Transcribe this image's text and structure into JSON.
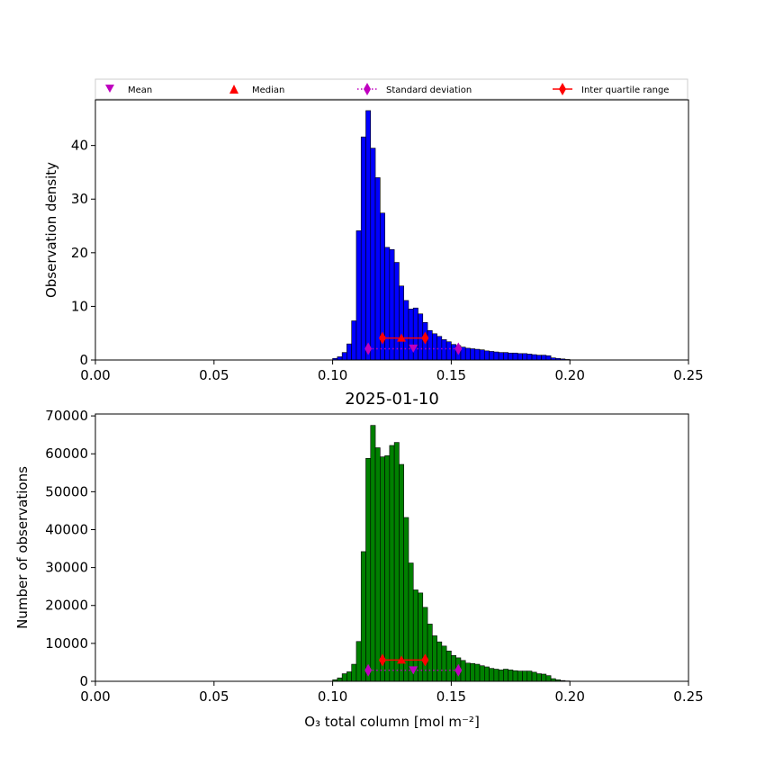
{
  "legend": {
    "placement": "top",
    "items": [
      {
        "label": "Mean",
        "marker": "triangle-down",
        "color": "#bf00bf"
      },
      {
        "label": "Median",
        "marker": "triangle-up",
        "color": "#ff0000"
      },
      {
        "label": "Standard deviation",
        "marker": "thin-diamond-dotted",
        "color": "#bf00bf"
      },
      {
        "label": "Inter quartile range",
        "marker": "thin-diamond-solid",
        "color": "#ff0000"
      }
    ]
  },
  "chart_data": [
    {
      "type": "bar",
      "panel": "top",
      "title": "",
      "xlabel": "",
      "ylabel": "Observation density",
      "xlim": [
        0,
        0.25
      ],
      "ylim": [
        0,
        48.5
      ],
      "x_ticks": [
        "0.00",
        "0.05",
        "0.10",
        "0.15",
        "0.20",
        "0.25"
      ],
      "y_ticks": [
        "0",
        "10",
        "20",
        "30",
        "40"
      ],
      "bar_color": "#0000ff",
      "bin_start": 0.1,
      "bin_width": 0.002,
      "values": [
        0.3,
        0.6,
        1.4,
        3.0,
        7.3,
        24.1,
        41.6,
        46.5,
        39.5,
        34.0,
        27.4,
        21.0,
        20.6,
        18.2,
        13.8,
        11.1,
        9.5,
        9.7,
        8.6,
        7.0,
        5.5,
        4.9,
        4.4,
        3.8,
        3.4,
        2.9,
        2.7,
        2.4,
        2.2,
        2.1,
        2.0,
        1.9,
        1.7,
        1.6,
        1.5,
        1.4,
        1.4,
        1.3,
        1.3,
        1.2,
        1.2,
        1.1,
        1.0,
        0.9,
        0.9,
        0.8,
        0.4,
        0.3,
        0.2,
        0.1
      ],
      "stats": {
        "mean": 0.134,
        "mean_y": 2.2,
        "median": 0.129,
        "median_y": 4.1,
        "std_range": [
          0.115,
          0.153
        ],
        "std_y": 2.1,
        "iqr_range": [
          0.121,
          0.139
        ],
        "iqr_y": 4.1
      }
    },
    {
      "type": "bar",
      "panel": "bottom",
      "title": "2025-01-10",
      "xlabel": "O₃ total column [mol m⁻²]",
      "ylabel": "Number of observations",
      "xlim": [
        0,
        0.25
      ],
      "ylim": [
        0,
        70500
      ],
      "x_ticks": [
        "0.00",
        "0.05",
        "0.10",
        "0.15",
        "0.20",
        "0.25"
      ],
      "y_ticks": [
        "0",
        "10000",
        "20000",
        "30000",
        "40000",
        "50000",
        "60000",
        "70000"
      ],
      "bar_color": "#008000",
      "bin_start": 0.1,
      "bin_width": 0.002,
      "values": [
        400,
        900,
        2000,
        2500,
        4500,
        10500,
        34200,
        58800,
        67500,
        61600,
        59200,
        59500,
        62200,
        63000,
        57200,
        43200,
        31200,
        24100,
        23300,
        19500,
        15100,
        12000,
        10400,
        9300,
        8000,
        6800,
        6200,
        5500,
        4800,
        4700,
        4500,
        4100,
        3800,
        3400,
        3200,
        3000,
        3200,
        3000,
        2800,
        2700,
        2700,
        2700,
        2400,
        2000,
        1900,
        1500,
        700,
        400,
        200,
        100
      ],
      "stats": {
        "mean": 0.134,
        "mean_y": 3000,
        "median": 0.129,
        "median_y": 5600,
        "std_range": [
          0.115,
          0.153
        ],
        "std_y": 2900,
        "iqr_range": [
          0.121,
          0.139
        ],
        "iqr_y": 5600
      }
    }
  ]
}
